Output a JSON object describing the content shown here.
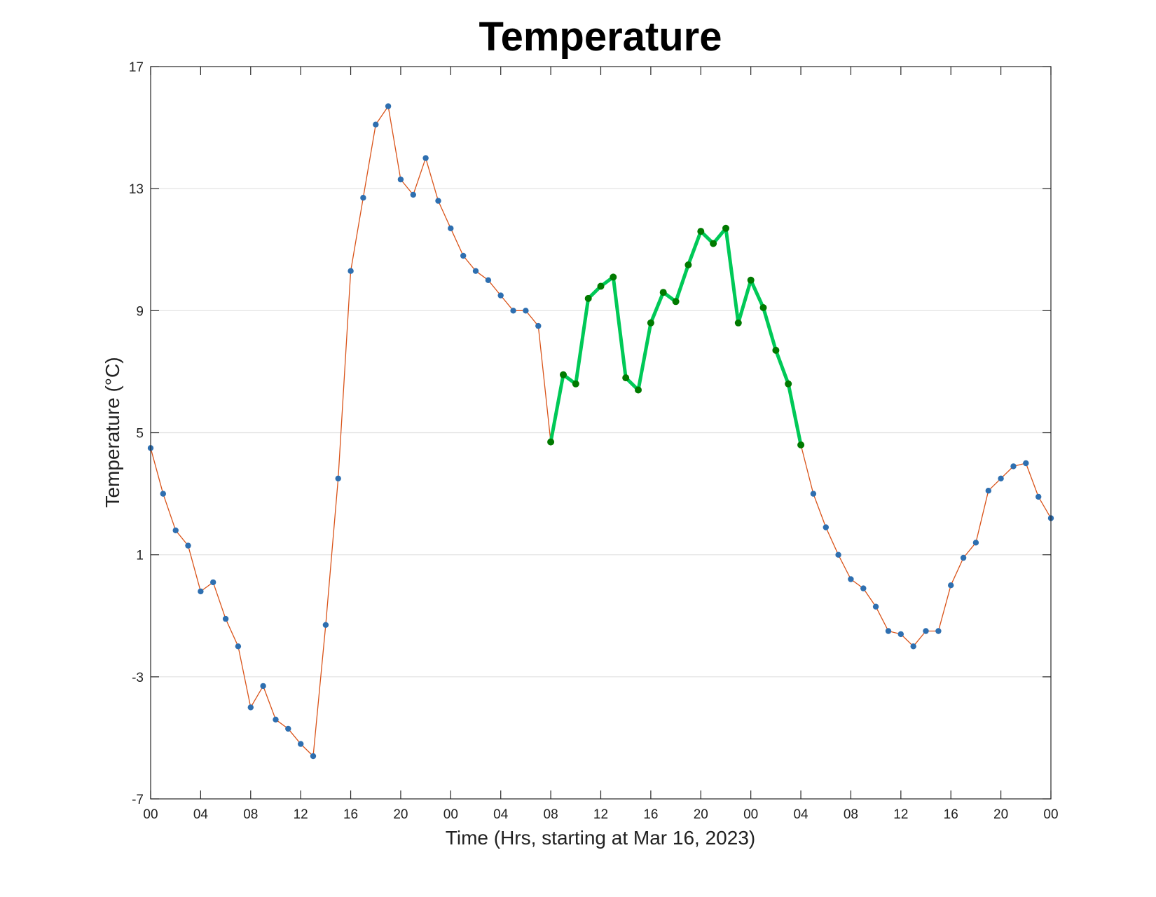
{
  "chart_data": {
    "type": "line",
    "title": "Temperature",
    "xlabel": "Time (Hrs, starting at Mar 16, 2023)",
    "ylabel": "Temperature (°C)",
    "x_unit": "hours from Mar 16, 2023 00:00",
    "xlim": [
      0,
      72
    ],
    "ylim": [
      -7,
      17
    ],
    "yticks": [
      -7,
      -3,
      1,
      5,
      9,
      13,
      17
    ],
    "xticks": [
      0,
      4,
      8,
      12,
      16,
      20,
      24,
      28,
      32,
      36,
      40,
      44,
      48,
      52,
      56,
      60,
      64,
      68,
      72
    ],
    "xtick_labels": [
      "00",
      "04",
      "08",
      "12",
      "16",
      "20",
      "00",
      "04",
      "08",
      "12",
      "16",
      "20",
      "00",
      "04",
      "08",
      "12",
      "16",
      "20",
      "00"
    ],
    "grid": "horizontal",
    "highlight_range": [
      32,
      52
    ],
    "colors": {
      "line": "#d95319",
      "markers": "#2e6fb0",
      "highlight_line": "#00c957",
      "highlight_markers": "#007a00",
      "grid": "#e0e0e0",
      "axes": "#262626"
    },
    "series": [
      {
        "x": [
          0,
          1,
          2,
          3,
          4,
          5,
          6,
          7,
          8,
          9,
          10,
          11,
          12,
          13,
          14,
          15,
          16,
          17,
          18,
          19,
          20,
          21,
          22,
          23,
          24,
          25,
          26,
          27,
          28,
          29,
          30,
          31,
          32,
          33,
          34,
          35,
          36,
          37,
          38,
          39,
          40,
          41,
          42,
          43,
          44,
          45,
          46,
          47,
          48,
          49,
          50,
          51,
          52,
          53,
          54,
          55,
          56,
          57,
          58,
          59,
          60,
          61,
          62,
          63,
          64,
          65,
          66,
          67,
          68,
          69,
          70,
          71,
          72
        ],
        "values": [
          4.5,
          3.0,
          1.8,
          1.3,
          -0.2,
          0.1,
          -1.1,
          -2.0,
          -4.0,
          -3.3,
          -4.4,
          -4.7,
          -5.2,
          -5.6,
          -1.3,
          3.5,
          10.3,
          12.7,
          15.1,
          15.7,
          13.3,
          12.8,
          14.0,
          12.6,
          11.7,
          10.8,
          10.3,
          10.0,
          9.5,
          9.0,
          9.0,
          8.5,
          4.7,
          6.9,
          6.6,
          9.4,
          9.8,
          10.1,
          6.8,
          6.4,
          8.6,
          9.6,
          9.3,
          10.5,
          11.6,
          11.2,
          11.7,
          8.6,
          10.0,
          9.1,
          7.7,
          6.6,
          4.6,
          3.0,
          1.9,
          1.0,
          0.2,
          -0.1,
          -0.7,
          -1.5,
          -1.6,
          -2.0,
          -1.5,
          -1.5,
          0.0,
          0.9,
          1.4,
          3.1,
          3.5,
          3.9,
          4.0,
          2.9,
          2.2
        ]
      }
    ]
  }
}
